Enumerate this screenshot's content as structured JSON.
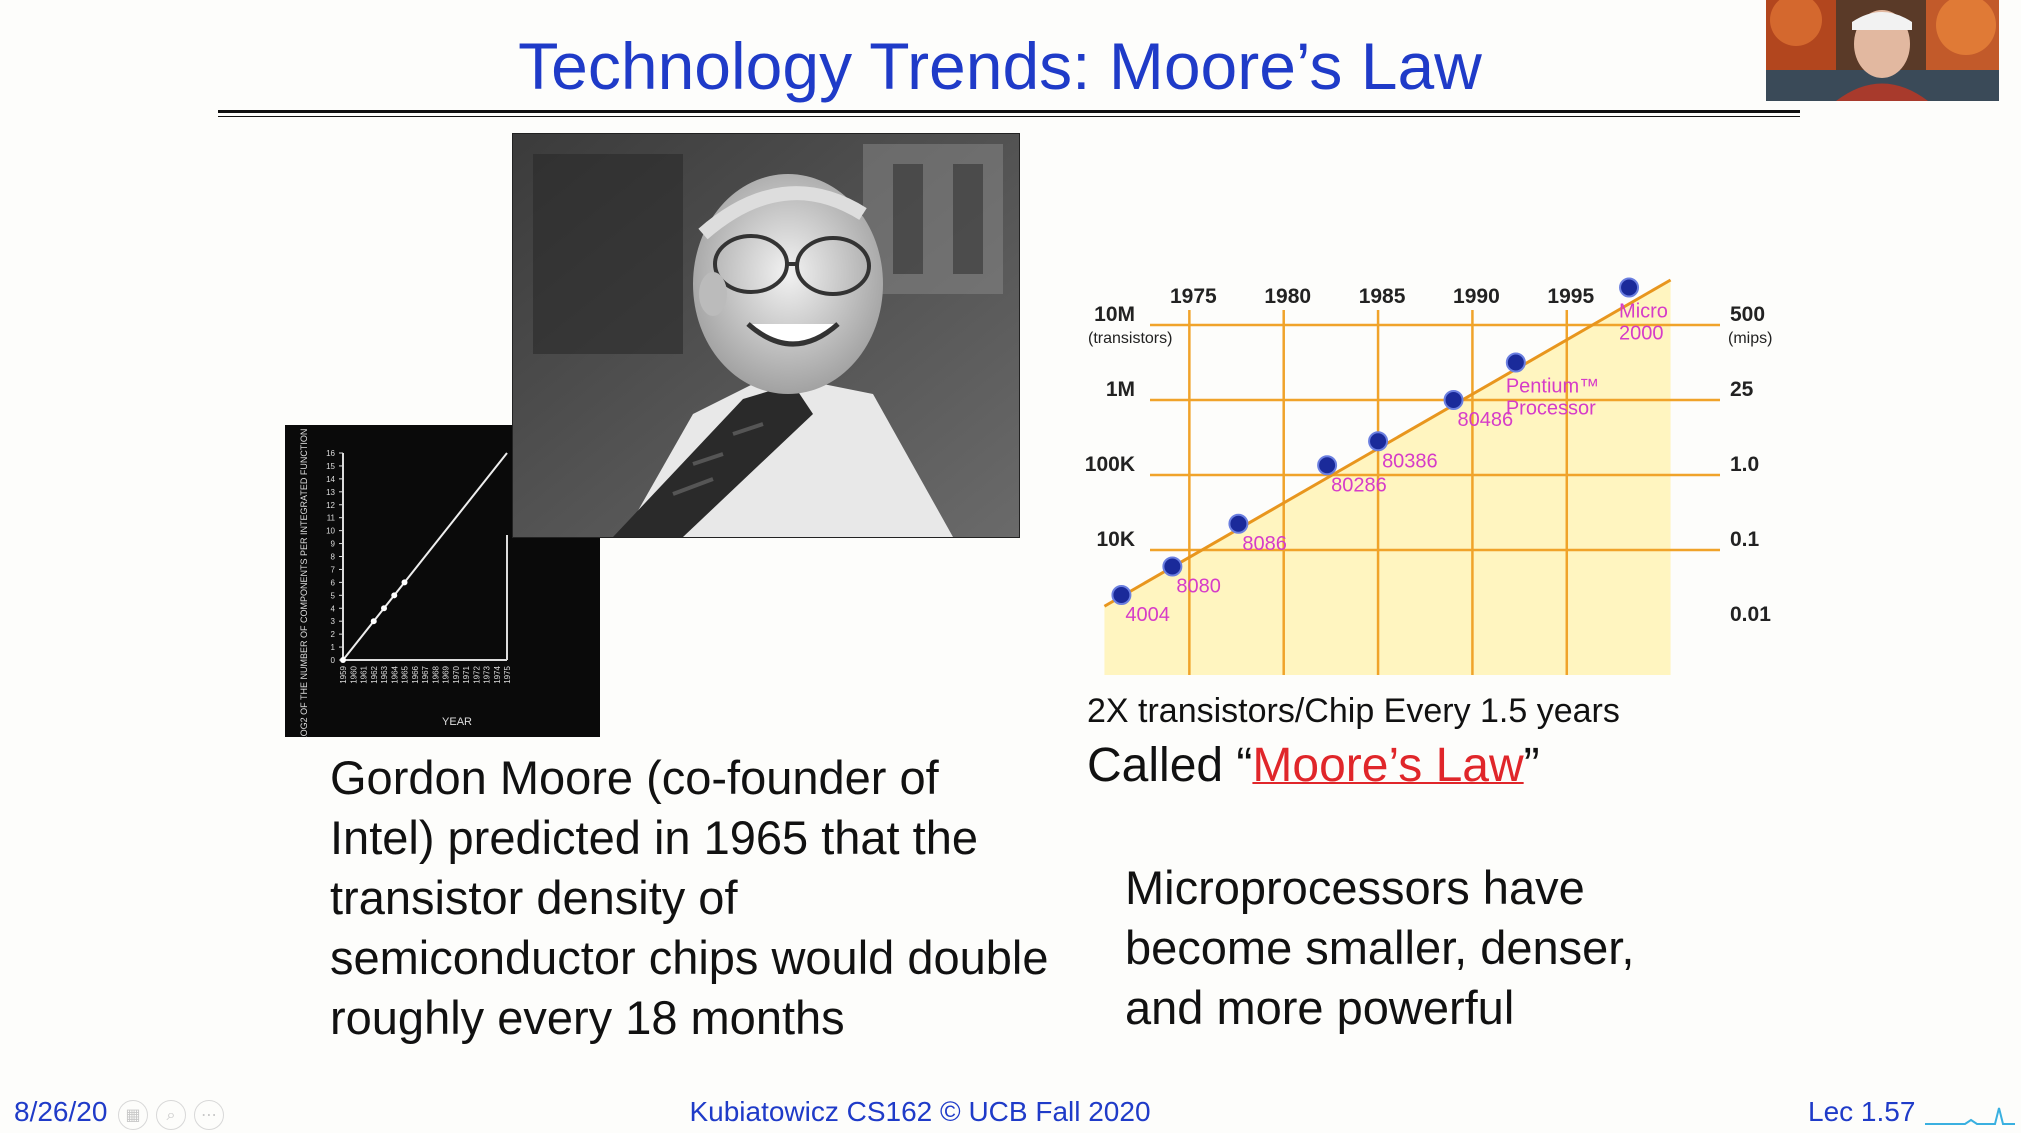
{
  "slide": {
    "title": "Technology Trends: Moore’s Law",
    "caption_line1": "2X transistors/Chip Every 1.5 years",
    "caption_called_prefix": "Called “",
    "caption_called_link": "Moore’s Law",
    "caption_called_suffix": "”",
    "body_left": "Gordon Moore (co-founder of Intel) predicted in 1965 that the transistor density of semiconductor chips would double roughly every 18 months",
    "body_right": "Microprocessors have become smaller, denser, and more powerful"
  },
  "footer": {
    "date": "8/26/20",
    "center": "Kubiatowicz CS162 © UCB Fall 2020",
    "slide_number": "Lec 1.57"
  },
  "toolbar": {
    "icons": [
      "slides-icon",
      "zoom-icon",
      "more-icon"
    ]
  },
  "plot_photo": {
    "ylabel": "LOG2 OF THE NUMBER OF COMPONENTS PER INTEGRATED FUNCTION",
    "xlabel": "YEAR",
    "y_ticks": [
      "0",
      "1",
      "2",
      "3",
      "4",
      "5",
      "6",
      "7",
      "8",
      "9",
      "10",
      "11",
      "12",
      "13",
      "14",
      "15",
      "16"
    ],
    "x_ticks": [
      "1959",
      "1960",
      "1961",
      "1962",
      "1963",
      "1964",
      "1965",
      "1966",
      "1967",
      "1968",
      "1969",
      "1970",
      "1971",
      "1972",
      "1973",
      "1974",
      "1975"
    ],
    "points": [
      [
        1959,
        0
      ],
      [
        1962,
        3
      ],
      [
        1963,
        4
      ],
      [
        1964,
        5
      ],
      [
        1965,
        6
      ]
    ],
    "trend": [
      [
        1959,
        0
      ],
      [
        1975,
        16
      ]
    ]
  },
  "chart_data": {
    "type": "scatter",
    "x_ticks": [
      "1975",
      "1980",
      "1985",
      "1990",
      "1995"
    ],
    "xlim": [
      1970,
      2001
    ],
    "y_left_ticks": [
      "10M",
      "1M",
      "100K",
      "10K"
    ],
    "y_left_units": "(transistors)",
    "y_right_ticks": [
      "500",
      "25",
      "1.0",
      "0.1",
      "0.01"
    ],
    "y_right_units": "(mips)",
    "grid": true,
    "colors": {
      "grid": "#f0a32a",
      "area": "#fff5c0",
      "trend": "#e8961e",
      "point": "#1a2a9a",
      "label": "#d63cc8"
    },
    "points": [
      {
        "label": "4004",
        "year": 1971.4,
        "log_transistors": 3.4
      },
      {
        "label": "8080",
        "year": 1974.1,
        "log_transistors": 3.78
      },
      {
        "label": "8086",
        "year": 1977.6,
        "log_transistors": 4.35
      },
      {
        "label": "80286",
        "year": 1982.3,
        "log_transistors": 5.13
      },
      {
        "label": "80386",
        "year": 1985.0,
        "log_transistors": 5.45
      },
      {
        "label": "80486",
        "year": 1989.0,
        "log_transistors": 6.0
      },
      {
        "label": "Pentium™ Processor",
        "year": 1992.3,
        "log_transistors": 6.5
      },
      {
        "label": "Micro 2000",
        "year": 1998.3,
        "log_transistors": 7.5
      }
    ]
  }
}
